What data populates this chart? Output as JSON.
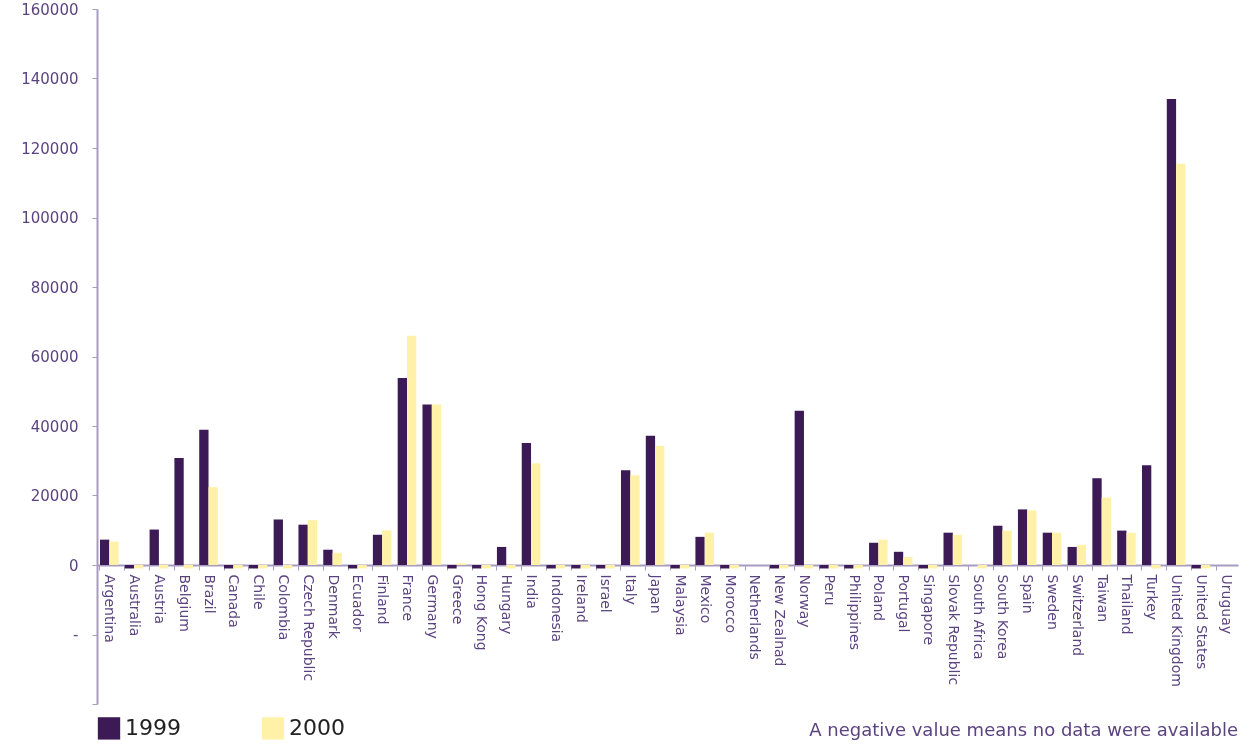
{
  "chart_data": {
    "type": "bar",
    "categories": [
      "Argentina",
      "Australia",
      "Austria",
      "Belgium",
      "Brazil",
      "Canada",
      "Chile",
      "Colombia",
      "Czech Republic",
      "Denmark",
      "Ecuador",
      "Finland",
      "France",
      "Germany",
      "Greece",
      "Hong Kong",
      "Hungary",
      "India",
      "Indonesia",
      "Ireland",
      "Israel",
      "Italy",
      "Japan",
      "Malaysia",
      "Mexico",
      "Morocco",
      "Netherlands",
      "New Zealnad",
      "Norway",
      "Peru",
      "Philippines",
      "Poland",
      "Portugal",
      "Singapore",
      "Slovak Republic",
      "South Africa",
      "South Korea",
      "Spain",
      "Sweden",
      "Switzerland",
      "Taiwan",
      "Thailand",
      "Turkey",
      "United Kingdom",
      "United States",
      "Uruguay"
    ],
    "series": [
      {
        "name": "1999",
        "color": "#3b1a55",
        "values": [
          7300,
          -1000,
          10200,
          30800,
          38900,
          -1000,
          -1000,
          13100,
          11600,
          4400,
          -1000,
          8700,
          53800,
          46200,
          -1000,
          -1000,
          5200,
          35100,
          -1000,
          -1000,
          -1000,
          27300,
          37200,
          -1000,
          8100,
          -1000,
          null,
          -1000,
          44400,
          -1000,
          -1000,
          6400,
          3800,
          -1000,
          9300,
          null,
          11300,
          16000,
          9300,
          5200,
          25000,
          9900,
          28700,
          134100,
          -1000,
          null
        ]
      },
      {
        "name": "2000",
        "color": "#fff2a8",
        "values": [
          6700,
          -1000,
          -1000,
          -1000,
          22400,
          -1000,
          -1000,
          -1000,
          12900,
          3500,
          -1000,
          10000,
          66000,
          46200,
          500,
          -1000,
          -1000,
          29300,
          -1000,
          -1000,
          -1000,
          25800,
          34300,
          -1000,
          9300,
          -1000,
          null,
          -1000,
          -1000,
          -1000,
          -1000,
          7300,
          2300,
          -1000,
          8700,
          -1000,
          9900,
          15700,
          9300,
          5800,
          19400,
          9300,
          -1000,
          115500,
          -1000,
          null
        ]
      }
    ],
    "ylim": [
      -40000,
      160000
    ],
    "yticks": [
      {
        "value": -40000,
        "label": null
      },
      {
        "value": -20000,
        "label": "-"
      },
      0,
      20000,
      40000,
      60000,
      80000,
      100000,
      120000,
      140000,
      160000
    ],
    "grid": false,
    "legend": "bottom",
    "annotations": [
      "A negative value means no data were available"
    ]
  }
}
